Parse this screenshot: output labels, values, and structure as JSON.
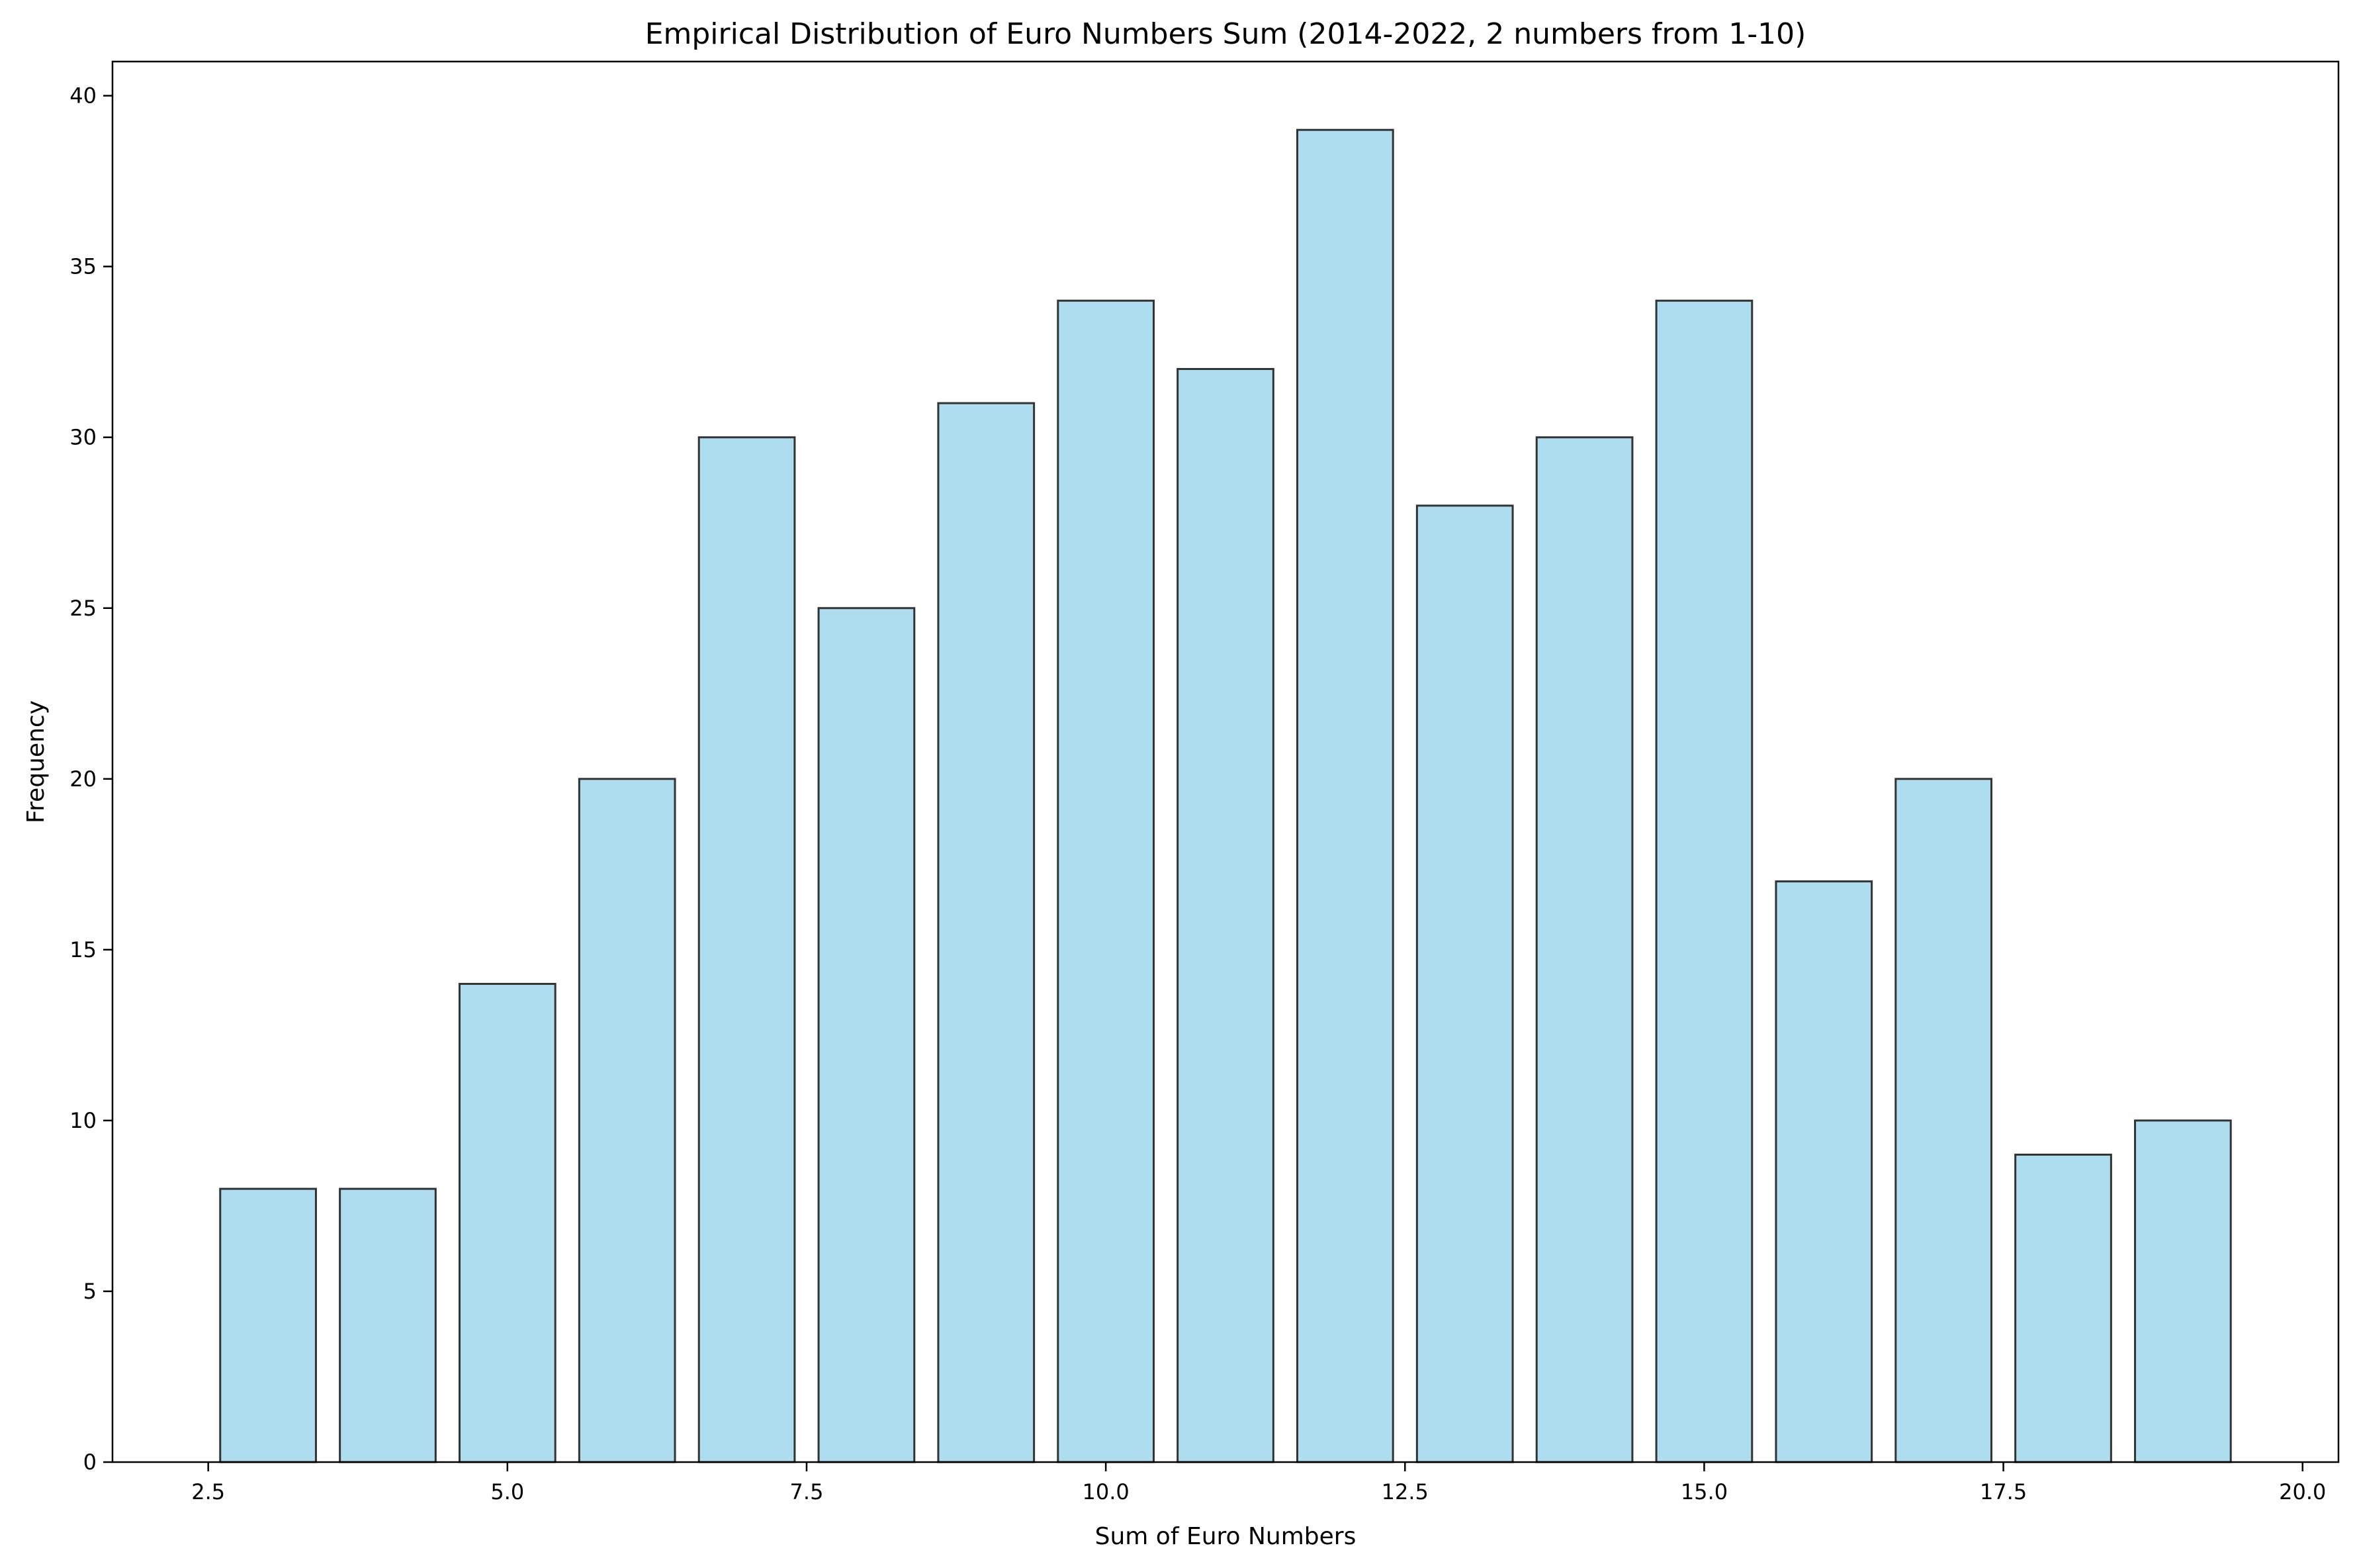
{
  "chart_data": {
    "type": "bar",
    "title": "Empirical Distribution of Euro Numbers Sum (2014-2022, 2 numbers from 1-10)",
    "xlabel": "Sum of Euro Numbers",
    "ylabel": "Frequency",
    "categories": [
      3,
      4,
      5,
      6,
      7,
      8,
      9,
      10,
      11,
      12,
      13,
      14,
      15,
      16,
      17,
      18,
      19
    ],
    "values": [
      8,
      8,
      14,
      20,
      30,
      25,
      31,
      34,
      32,
      39,
      28,
      30,
      34,
      17,
      20,
      9,
      10
    ],
    "xlim": [
      1.7,
      20.3
    ],
    "ylim": [
      0,
      41
    ],
    "bar_width": 0.8,
    "xticks": [
      2.5,
      5.0,
      7.5,
      10.0,
      12.5,
      15.0,
      17.5,
      20.0
    ],
    "xtick_labels": [
      "2.5",
      "5.0",
      "7.5",
      "10.0",
      "12.5",
      "15.0",
      "17.5",
      "20.0"
    ],
    "yticks": [
      0,
      5,
      10,
      15,
      20,
      25,
      30,
      35,
      40
    ],
    "ytick_labels": [
      "0",
      "5",
      "10",
      "15",
      "20",
      "25",
      "30",
      "35",
      "40"
    ],
    "grid": false,
    "bar_color": "#ADDDEF",
    "bar_edge_color": "#333333"
  }
}
